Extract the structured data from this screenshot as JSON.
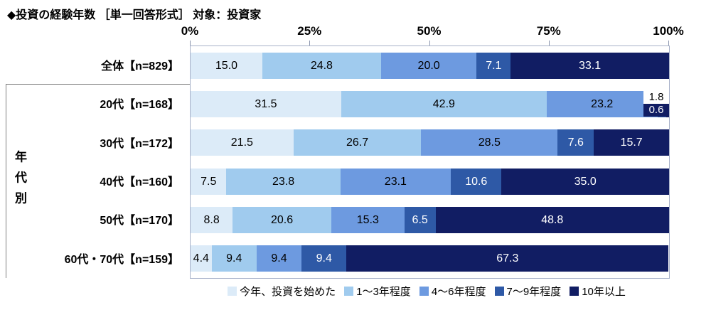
{
  "title": "◆投資の経験年数 ［単一回答形式］ 対象：投資家",
  "group_label": "年代別",
  "axis": {
    "ticks": [
      "0%",
      "25%",
      "50%",
      "75%",
      "100%"
    ]
  },
  "chart_data": {
    "type": "bar",
    "stacked": true,
    "orientation": "horizontal",
    "xlim": [
      0,
      100
    ],
    "grid": false,
    "legend_position": "bottom",
    "value_format": "one_decimal",
    "categories": [
      "全体【n=829】",
      "20代【n=168】",
      "30代【n=172】",
      "40代【n=160】",
      "50代【n=170】",
      "60代・70代【n=159】"
    ],
    "series": [
      {
        "name": "今年、投資を始めた",
        "color": "#dcebf8",
        "text_color": "#000000",
        "values": [
          15.0,
          31.5,
          21.5,
          7.5,
          8.8,
          4.4
        ]
      },
      {
        "name": "1～3年程度",
        "color": "#a0cbee",
        "text_color": "#000000",
        "values": [
          24.8,
          42.9,
          26.7,
          23.8,
          20.6,
          9.4
        ]
      },
      {
        "name": "4～6年程度",
        "color": "#6d9ae0",
        "text_color": "#000000",
        "values": [
          20.0,
          23.2,
          28.5,
          23.1,
          15.3,
          9.4
        ]
      },
      {
        "name": "7～9年程度",
        "color": "#2e59a6",
        "text_color": "#ffffff",
        "values": [
          7.1,
          1.8,
          7.6,
          10.6,
          6.5,
          9.4
        ]
      },
      {
        "name": "10年以上",
        "color": "#111d63",
        "text_color": "#ffffff",
        "values": [
          33.1,
          0.6,
          15.7,
          35.0,
          48.8,
          67.3
        ]
      }
    ]
  }
}
